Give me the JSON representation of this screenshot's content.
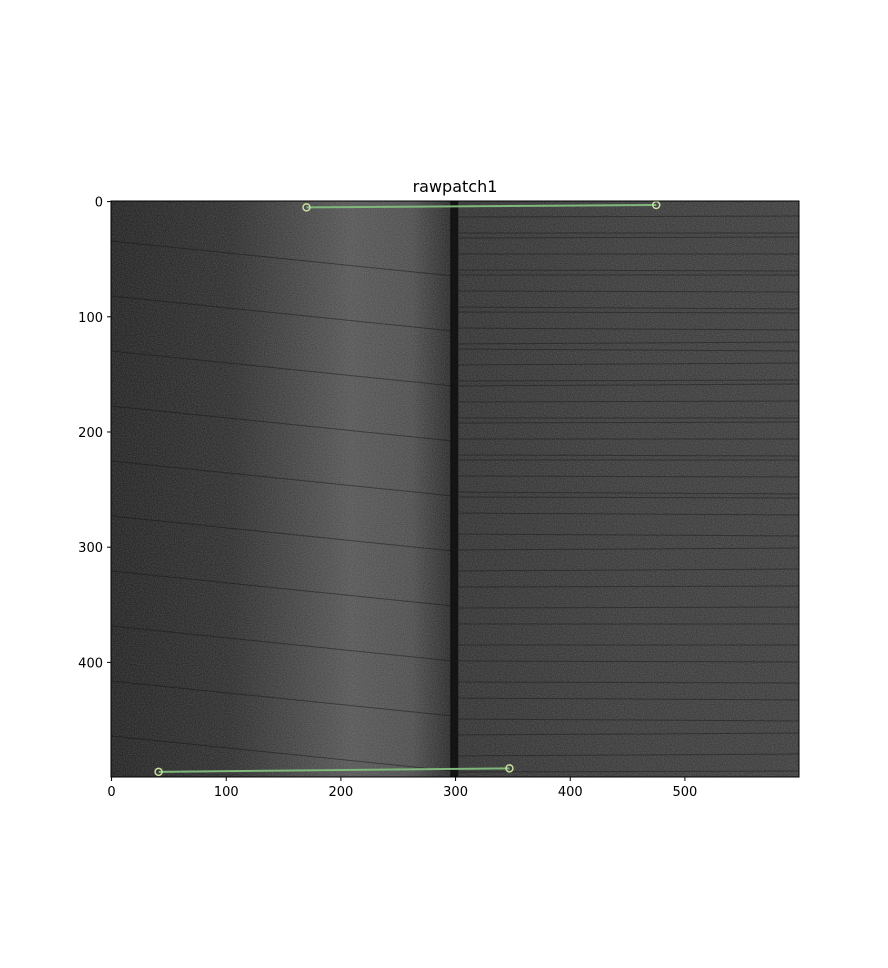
{
  "chart_data": {
    "type": "image",
    "title": "rawpatch1",
    "xlim": [
      -0.5,
      599.5
    ],
    "ylim": [
      499.5,
      -0.5
    ],
    "x_ticks": [
      0,
      100,
      200,
      300,
      400,
      500
    ],
    "y_ticks": [
      0,
      100,
      200,
      300,
      400
    ],
    "image": {
      "colormap": "gray",
      "vertical_seam_x": 298
    },
    "overlay_lines": [
      {
        "x": [
          170,
          475
        ],
        "y": [
          5,
          3
        ],
        "color": "#7fb87a"
      },
      {
        "x": [
          41,
          347
        ],
        "y": [
          495,
          492
        ],
        "color": "#7fb87a"
      }
    ],
    "grid": false,
    "legend": "none"
  }
}
